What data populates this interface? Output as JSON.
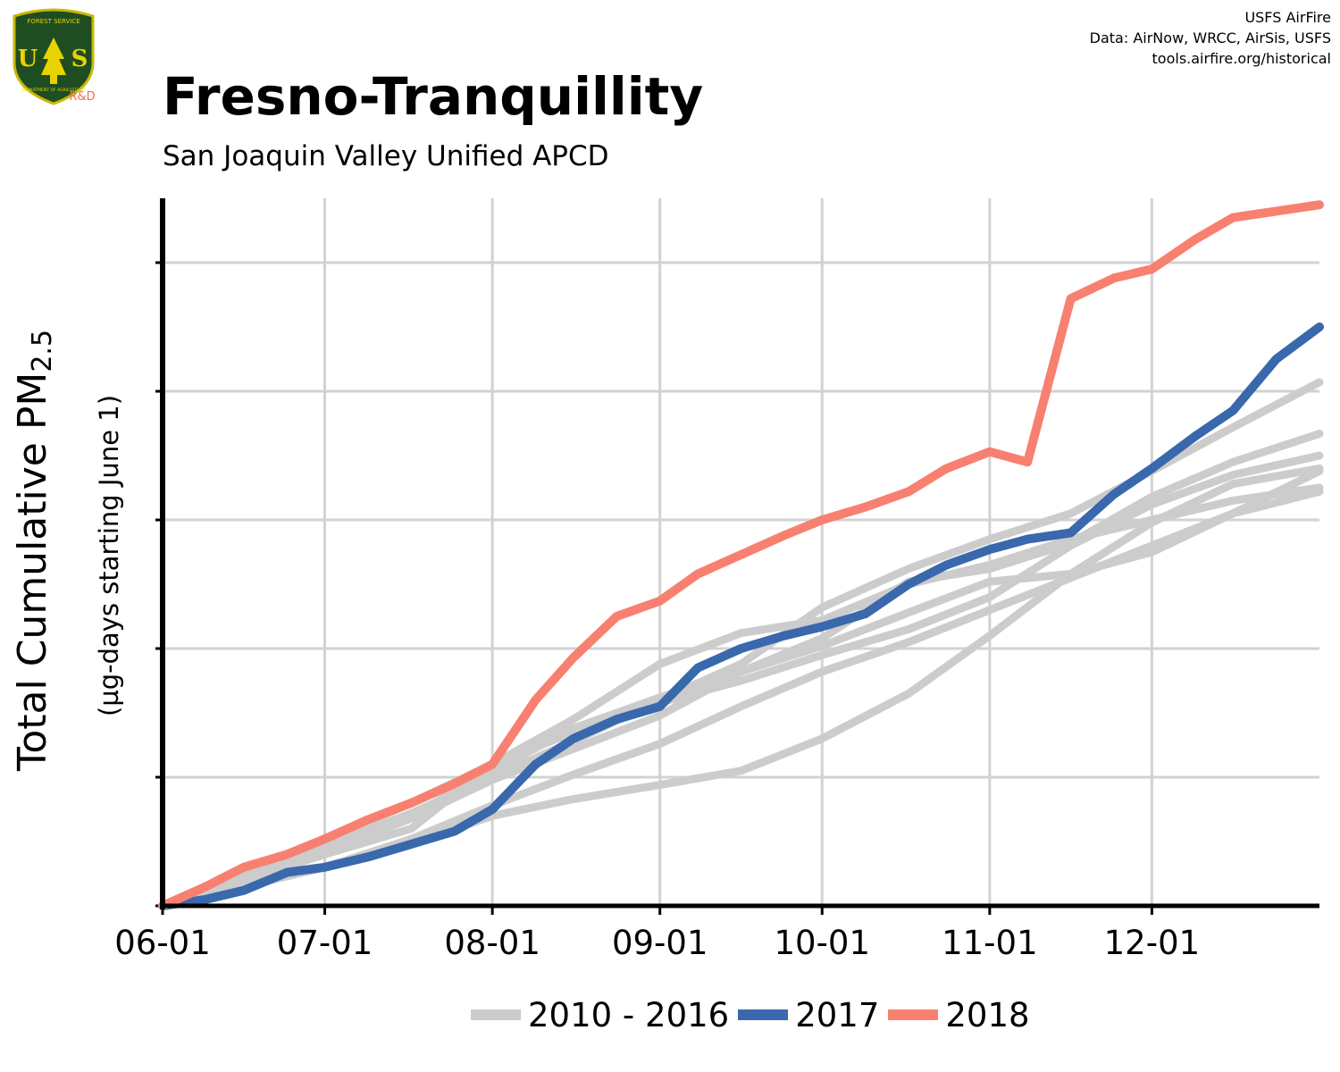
{
  "header": {
    "title": "Fresno-Tranquillity",
    "subtitle": "San Joaquin Valley Unified APCD",
    "credits": [
      "USFS AirFire",
      "Data: AirNow, WRCC, AirSis, USFS",
      "tools.airfire.org/historical"
    ]
  },
  "logo": {
    "name": "usfs-shield-logo",
    "top_text": "FOREST SERVICE",
    "letters": "U S",
    "bottom_text": "DEPARTMENT OF AGRICULTURE",
    "badge": "R&D",
    "colors": {
      "shield": "#1f4d22",
      "rim": "#c9b800",
      "tree": "#e8d300",
      "badge": "#e8705a"
    }
  },
  "axes": {
    "ylabel_main": "Total Cumulative PM",
    "ylabel_main_sub": "2.5",
    "ylabel_sub": "(µg-days starting June 1)"
  },
  "legend": [
    {
      "label": "2010 - 2016",
      "color": "#cccccc"
    },
    {
      "label": "2017",
      "color": "#3968ad"
    },
    {
      "label": "2018",
      "color": "#f88070"
    }
  ],
  "chart_data": {
    "type": "line",
    "title": "Fresno-Tranquillity",
    "subtitle": "San Joaquin Valley Unified APCD",
    "xlabel": "",
    "ylabel": "Total Cumulative PM2.5 (µg-days starting June 1)",
    "x_unit": "days since June 1",
    "xlim": [
      0,
      214
    ],
    "ylim": [
      0,
      550
    ],
    "x_ticks": [
      {
        "label": "06-01",
        "x": 0
      },
      {
        "label": "07-01",
        "x": 30
      },
      {
        "label": "08-01",
        "x": 61
      },
      {
        "label": "09-01",
        "x": 92
      },
      {
        "label": "10-01",
        "x": 122
      },
      {
        "label": "11-01",
        "x": 153
      },
      {
        "label": "12-01",
        "x": 183
      }
    ],
    "y_gridlines": [
      0,
      100,
      200,
      300,
      400,
      500
    ],
    "y_tick_labels_shown": false,
    "grid": true,
    "legend_position": "bottom",
    "series": [
      {
        "name": "2010 - 2016",
        "color": "#cccccc",
        "x": [
          0,
          15,
          30,
          46,
          61,
          76,
          92,
          107,
          122,
          138,
          153,
          168,
          183,
          198,
          214
        ],
        "y": [
          0,
          22,
          46,
          72,
          100,
          128,
          160,
          188,
          232,
          262,
          285,
          305,
          338,
          372,
          407
        ]
      },
      {
        "name": "2010 - 2016",
        "color": "#cccccc",
        "x": [
          0,
          15,
          30,
          46,
          61,
          76,
          92,
          107,
          122,
          138,
          153,
          168,
          183,
          198,
          214
        ],
        "y": [
          0,
          15,
          30,
          52,
          78,
          102,
          126,
          155,
          182,
          205,
          230,
          255,
          280,
          305,
          338
        ]
      },
      {
        "name": "2010 - 2016",
        "color": "#cccccc",
        "x": [
          0,
          15,
          30,
          46,
          61,
          76,
          92,
          107,
          122,
          138,
          153,
          168,
          183,
          198,
          214
        ],
        "y": [
          0,
          22,
          48,
          70,
          105,
          138,
          162,
          182,
          208,
          252,
          262,
          282,
          318,
          345,
          367
        ]
      },
      {
        "name": "2010 - 2016",
        "color": "#cccccc",
        "x": [
          0,
          15,
          30,
          46,
          61,
          76,
          92,
          107,
          122,
          138,
          153,
          168,
          183,
          198,
          214
        ],
        "y": [
          0,
          20,
          40,
          60,
          110,
          145,
          188,
          212,
          222,
          250,
          265,
          285,
          300,
          315,
          325
        ]
      },
      {
        "name": "2010 - 2016",
        "color": "#cccccc",
        "x": [
          0,
          15,
          30,
          46,
          61,
          76,
          92,
          107,
          122,
          138,
          153,
          168,
          183,
          198,
          214
        ],
        "y": [
          0,
          18,
          42,
          68,
          98,
          122,
          148,
          182,
          202,
          228,
          252,
          258,
          275,
          305,
          322
        ]
      },
      {
        "name": "2010 - 2016",
        "color": "#cccccc",
        "x": [
          0,
          15,
          30,
          46,
          61,
          76,
          92,
          107,
          122,
          138,
          153,
          168,
          183,
          198,
          214
        ],
        "y": [
          0,
          24,
          50,
          80,
          110,
          135,
          158,
          175,
          195,
          215,
          240,
          280,
          312,
          335,
          350
        ]
      },
      {
        "name": "2010 - 2016",
        "color": "#cccccc",
        "x": [
          0,
          15,
          30,
          46,
          61,
          76,
          92,
          107,
          122,
          138,
          153,
          168,
          183,
          198,
          214
        ],
        "y": [
          0,
          15,
          30,
          48,
          70,
          83,
          94,
          105,
          130,
          165,
          210,
          258,
          298,
          328,
          340
        ]
      },
      {
        "name": "2017",
        "color": "#3968ad",
        "x": [
          0,
          8,
          15,
          23,
          30,
          38,
          46,
          54,
          61,
          69,
          76,
          84,
          92,
          99,
          107,
          115,
          122,
          130,
          138,
          145,
          153,
          160,
          168,
          176,
          183,
          191,
          198,
          206,
          214
        ],
        "y": [
          0,
          5,
          12,
          26,
          30,
          38,
          48,
          58,
          75,
          110,
          130,
          145,
          155,
          185,
          200,
          210,
          217,
          227,
          250,
          265,
          277,
          285,
          290,
          320,
          340,
          365,
          385,
          425,
          450
        ]
      },
      {
        "name": "2018",
        "color": "#f88070",
        "x": [
          0,
          8,
          15,
          23,
          30,
          38,
          46,
          54,
          61,
          69,
          76,
          84,
          92,
          99,
          107,
          115,
          122,
          130,
          138,
          145,
          153,
          160,
          168,
          176,
          183,
          191,
          198,
          206,
          214
        ],
        "y": [
          0,
          15,
          30,
          40,
          52,
          67,
          80,
          95,
          110,
          160,
          193,
          225,
          237,
          258,
          273,
          288,
          300,
          310,
          322,
          340,
          353,
          345,
          472,
          488,
          495,
          518,
          535,
          540,
          545
        ]
      }
    ]
  }
}
